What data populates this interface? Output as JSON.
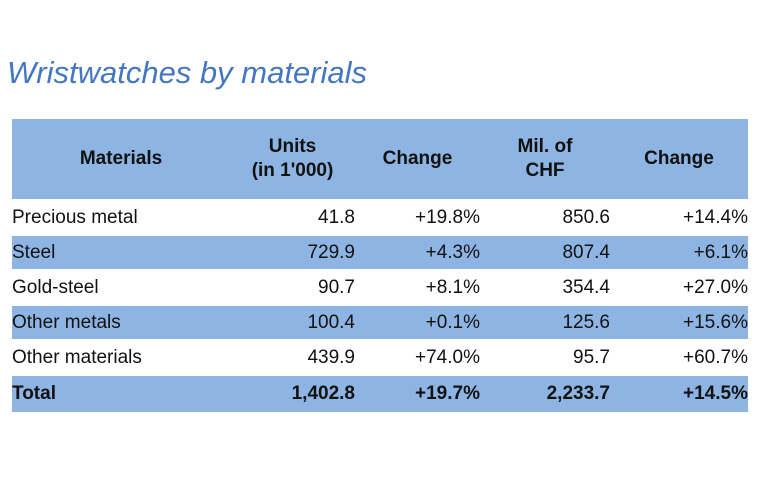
{
  "title": "Wristwatches by materials",
  "colors": {
    "band_blue": "#8db4e2",
    "title_blue": "#4577c0",
    "text": "#111111",
    "background": "#ffffff"
  },
  "header": {
    "materials": "Materials",
    "units_line1": "Units",
    "units_line2": "(in 1'000)",
    "change_units": "Change",
    "chf_line1": "Mil. of",
    "chf_line2": "CHF",
    "change_chf": "Change"
  },
  "rows": [
    {
      "material": "Precious metal",
      "units": "41.8",
      "change_units": "+19.8%",
      "chf": "850.6",
      "change_chf": "+14.4%"
    },
    {
      "material": "Steel",
      "units": "729.9",
      "change_units": "+4.3%",
      "chf": "807.4",
      "change_chf": "+6.1%"
    },
    {
      "material": "Gold-steel",
      "units": "90.7",
      "change_units": "+8.1%",
      "chf": "354.4",
      "change_chf": "+27.0%"
    },
    {
      "material": "Other metals",
      "units": "100.4",
      "change_units": "+0.1%",
      "chf": "125.6",
      "change_chf": "+15.6%"
    },
    {
      "material": "Other materials",
      "units": "439.9",
      "change_units": "+74.0%",
      "chf": "95.7",
      "change_chf": "+60.7%"
    }
  ],
  "total": {
    "material": "Total",
    "units": "1,402.8",
    "change_units": "+19.7%",
    "chf": "2,233.7",
    "change_chf": "+14.5%"
  },
  "chart_data": {
    "type": "table",
    "title": "Wristwatches by materials",
    "columns": [
      "Materials",
      "Units (in 1'000)",
      "Change",
      "Mil. of CHF",
      "Change"
    ],
    "rows": [
      [
        "Precious metal",
        41.8,
        "+19.8%",
        850.6,
        "+14.4%"
      ],
      [
        "Steel",
        729.9,
        "+4.3%",
        807.4,
        "+6.1%"
      ],
      [
        "Gold-steel",
        90.7,
        "+8.1%",
        354.4,
        "+27.0%"
      ],
      [
        "Other metals",
        100.4,
        "+0.1%",
        125.6,
        "+15.6%"
      ],
      [
        "Other materials",
        439.9,
        "+74.0%",
        95.7,
        "+60.7%"
      ],
      [
        "Total",
        1402.8,
        "+19.7%",
        2233.7,
        "+14.5%"
      ]
    ],
    "layout_hints": {
      "striped_rows": true,
      "stripe_color": "#8db4e2",
      "numeric_alignment": "right",
      "total_row_bold": true
    }
  }
}
